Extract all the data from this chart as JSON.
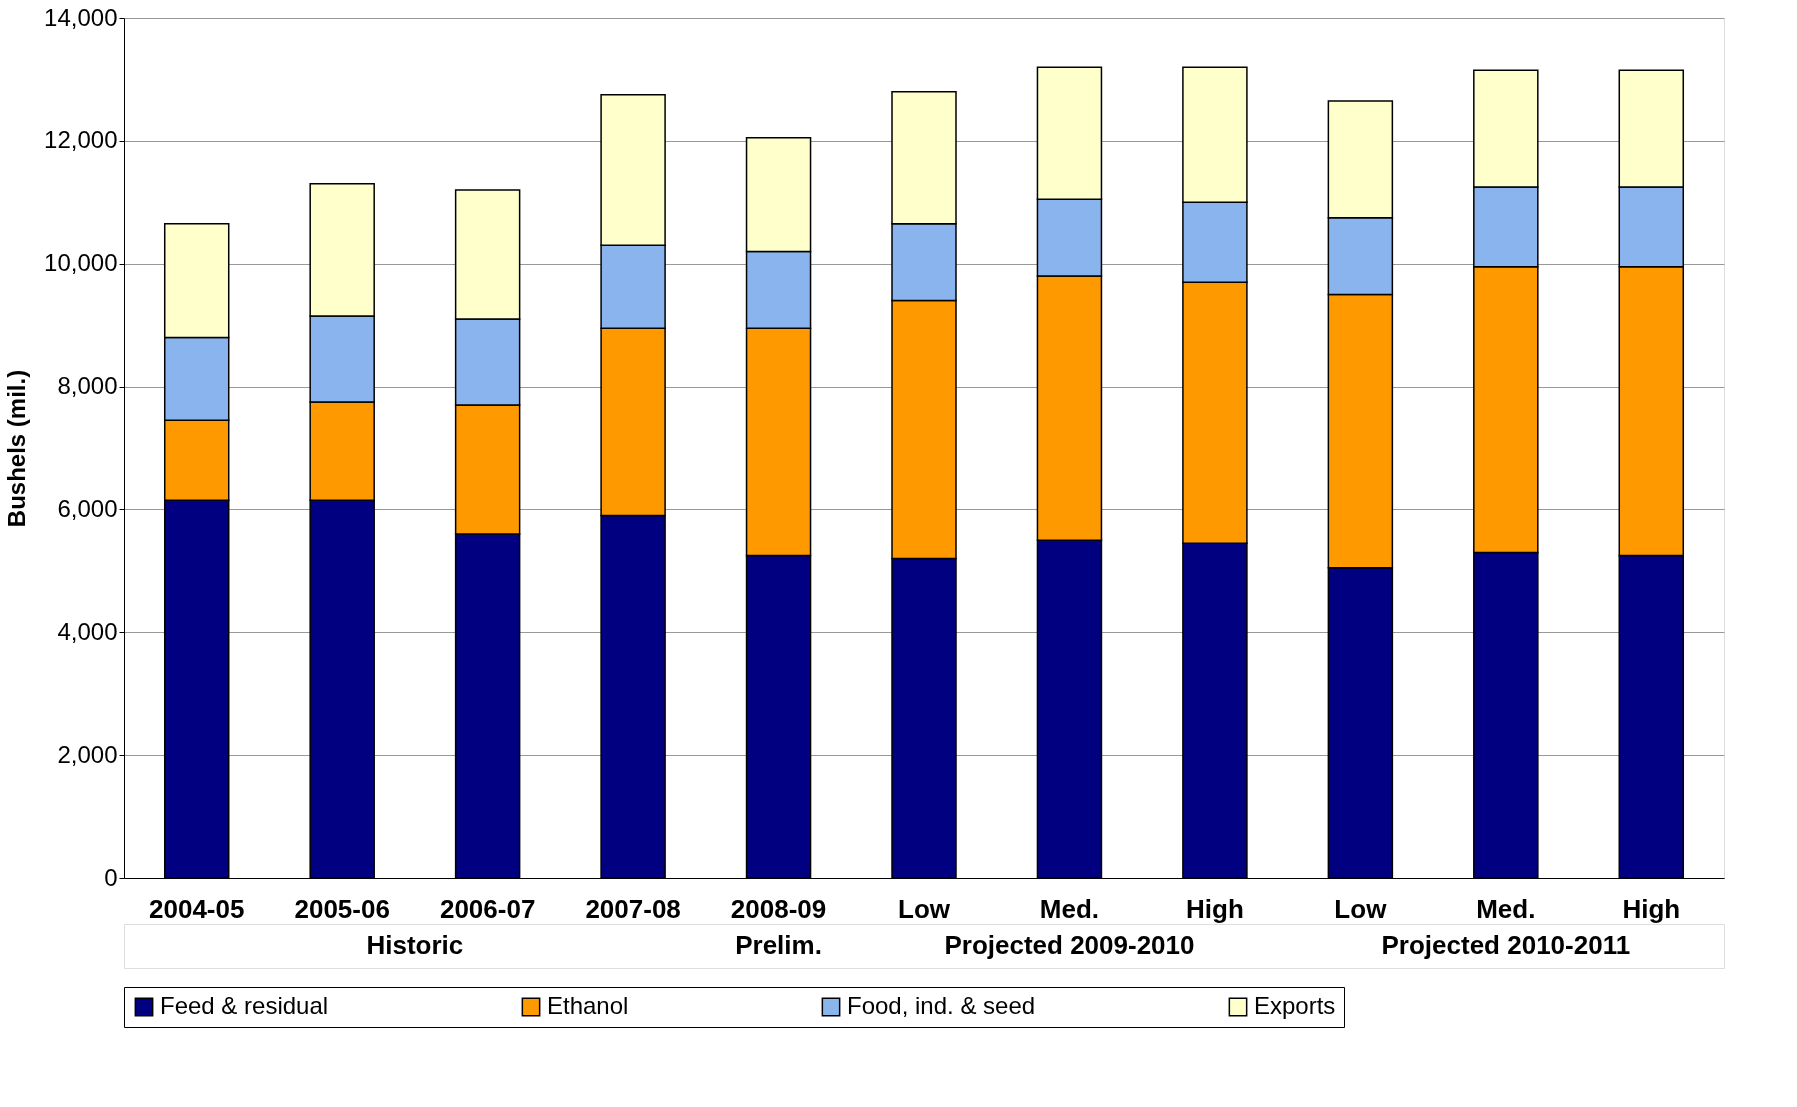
{
  "chart_data": {
    "type": "bar",
    "stacked": true,
    "ylabel": "Bushels (mil.)",
    "categories": [
      "2004-05",
      "2005-06",
      "2006-07",
      "2007-08",
      "2008-09",
      "Low",
      "Med.",
      "High",
      "Low",
      "Med.",
      "High"
    ],
    "series": [
      {
        "name": "Feed & residual",
        "color": "#000080",
        "values": [
          6150,
          6150,
          5600,
          5900,
          5250,
          5200,
          5500,
          5450,
          5050,
          5300,
          5250
        ]
      },
      {
        "name": "Ethanol",
        "color": "#ff9900",
        "values": [
          1300,
          1600,
          2100,
          3050,
          3700,
          4200,
          4300,
          4250,
          4450,
          4650,
          4700
        ]
      },
      {
        "name": "Food, ind. & seed",
        "color": "#8ab4ee",
        "values": [
          1350,
          1400,
          1400,
          1350,
          1250,
          1250,
          1250,
          1300,
          1250,
          1300,
          1300
        ]
      },
      {
        "name": "Exports",
        "color": "#ffffcc",
        "values": [
          1850,
          2150,
          2100,
          2450,
          1850,
          2150,
          2150,
          2200,
          1900,
          1900,
          1900
        ]
      }
    ],
    "ylim": [
      0,
      14000
    ],
    "yticks": [
      0,
      {
        "value": 2000,
        "label": "2,000"
      },
      {
        "value": 4000,
        "label": "4,000"
      },
      {
        "value": 6000,
        "label": "6,000"
      },
      {
        "value": 8000,
        "label": "8,000"
      },
      {
        "value": 10000,
        "label": "10,000"
      },
      {
        "value": 12000,
        "label": "12,000"
      },
      {
        "value": 14000,
        "label": "14,000"
      }
    ],
    "grid": "y",
    "legend": "bottom",
    "annotations": [
      "Historic",
      "Prelim.",
      "Projected 2009-2010",
      "Projected 2010-2011"
    ]
  }
}
